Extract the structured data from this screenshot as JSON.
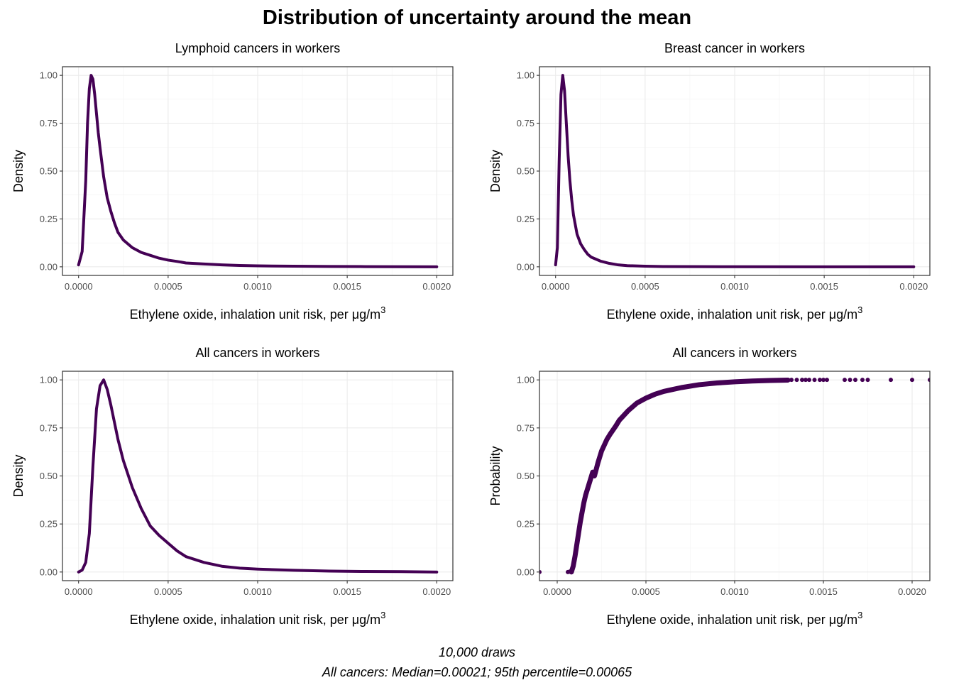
{
  "title": "Distribution of uncertainty around the mean",
  "caption": {
    "line1": "10,000 draws",
    "line2": "All cancers: Median=0.00021; 95th percentile=0.00065"
  },
  "colors": {
    "series": "#440154",
    "border": "#333333",
    "grid": "#ebebeb"
  },
  "chart_data": [
    {
      "type": "line",
      "title": "Lymphoid cancers in workers",
      "xlabel": "Ethylene oxide, inhalation unit risk, per ",
      "xlabel_unit": "μg/m",
      "xlabel_sup": "3",
      "ylabel": "Density",
      "xlim": [
        -9e-05,
        0.00209
      ],
      "ylim": [
        -0.045,
        1.045
      ],
      "x_ticks": [
        0,
        0.0005,
        0.001,
        0.0015,
        0.002
      ],
      "x_tick_labels": [
        "0.0000",
        "0.0005",
        "0.0010",
        "0.0015",
        "0.0020"
      ],
      "y_ticks": [
        0,
        0.25,
        0.5,
        0.75,
        1
      ],
      "y_tick_labels": [
        "0.00",
        "0.25",
        "0.50",
        "0.75",
        "1.00"
      ],
      "grid": true,
      "series": [
        {
          "x": [
            0,
            2e-05,
            4e-05,
            5e-05,
            6e-05,
            7e-05,
            8e-05,
            9e-05,
            0.0001,
            0.00011,
            0.00012,
            0.00014,
            0.00016,
            0.00018,
            0.0002,
            0.00022,
            0.00025,
            0.0003,
            0.00035,
            0.0004,
            0.00045,
            0.0005,
            0.00055,
            0.0006,
            0.0007,
            0.0008,
            0.0009,
            0.001,
            0.0012,
            0.0014,
            0.0016,
            0.0018,
            0.002
          ],
          "y": [
            0.01,
            0.08,
            0.45,
            0.75,
            0.93,
            1.0,
            0.98,
            0.9,
            0.8,
            0.7,
            0.62,
            0.47,
            0.36,
            0.29,
            0.23,
            0.18,
            0.14,
            0.1,
            0.075,
            0.06,
            0.045,
            0.035,
            0.028,
            0.02,
            0.015,
            0.01,
            0.007,
            0.005,
            0.003,
            0.002,
            0.001,
            0.0005,
            0.0
          ]
        }
      ]
    },
    {
      "type": "line",
      "title": "Breast cancer in workers",
      "xlabel": "Ethylene oxide, inhalation unit risk, per ",
      "xlabel_unit": "μg/m",
      "xlabel_sup": "3",
      "ylabel": "Density",
      "xlim": [
        -9e-05,
        0.00209
      ],
      "ylim": [
        -0.045,
        1.045
      ],
      "x_ticks": [
        0,
        0.0005,
        0.001,
        0.0015,
        0.002
      ],
      "x_tick_labels": [
        "0.0000",
        "0.0005",
        "0.0010",
        "0.0015",
        "0.0020"
      ],
      "y_ticks": [
        0,
        0.25,
        0.5,
        0.75,
        1
      ],
      "y_tick_labels": [
        "0.00",
        "0.25",
        "0.50",
        "0.75",
        "1.00"
      ],
      "grid": true,
      "series": [
        {
          "x": [
            0,
            1e-05,
            2e-05,
            3e-05,
            4e-05,
            5e-05,
            6e-05,
            7e-05,
            8e-05,
            9e-05,
            0.0001,
            0.00012,
            0.00014,
            0.00016,
            0.00018,
            0.0002,
            0.00025,
            0.0003,
            0.00035,
            0.0004,
            0.0005,
            0.0006,
            0.0008,
            0.001,
            0.0015,
            0.002
          ],
          "y": [
            0.01,
            0.1,
            0.55,
            0.9,
            1.0,
            0.92,
            0.75,
            0.58,
            0.45,
            0.35,
            0.27,
            0.17,
            0.12,
            0.09,
            0.065,
            0.05,
            0.03,
            0.018,
            0.01,
            0.006,
            0.003,
            0.0015,
            0.0008,
            0.0004,
            0.0001,
            0.0
          ]
        }
      ]
    },
    {
      "type": "line",
      "title": "All cancers in workers",
      "xlabel": "Ethylene oxide, inhalation unit risk, per ",
      "xlabel_unit": "μg/m",
      "xlabel_sup": "3",
      "ylabel": "Density",
      "xlim": [
        -9e-05,
        0.00209
      ],
      "ylim": [
        -0.045,
        1.045
      ],
      "x_ticks": [
        0,
        0.0005,
        0.001,
        0.0015,
        0.002
      ],
      "x_tick_labels": [
        "0.0000",
        "0.0005",
        "0.0010",
        "0.0015",
        "0.0020"
      ],
      "y_ticks": [
        0,
        0.25,
        0.5,
        0.75,
        1
      ],
      "y_tick_labels": [
        "0.00",
        "0.25",
        "0.50",
        "0.75",
        "1.00"
      ],
      "grid": true,
      "series": [
        {
          "x": [
            0,
            2e-05,
            4e-05,
            6e-05,
            8e-05,
            0.0001,
            0.00012,
            0.00014,
            0.00016,
            0.00018,
            0.0002,
            0.00022,
            0.00025,
            0.0003,
            0.00035,
            0.0004,
            0.00045,
            0.0005,
            0.00055,
            0.0006,
            0.0007,
            0.0008,
            0.0009,
            0.001,
            0.0012,
            0.0014,
            0.0016,
            0.0018,
            0.002
          ],
          "y": [
            0.0,
            0.01,
            0.05,
            0.2,
            0.55,
            0.85,
            0.97,
            1.0,
            0.95,
            0.87,
            0.78,
            0.69,
            0.58,
            0.44,
            0.33,
            0.24,
            0.19,
            0.15,
            0.11,
            0.08,
            0.05,
            0.03,
            0.02,
            0.015,
            0.009,
            0.005,
            0.003,
            0.002,
            0.0
          ]
        }
      ]
    },
    {
      "type": "scatter",
      "title": "All cancers in workers",
      "xlabel": "Ethylene oxide, inhalation unit risk, per ",
      "xlabel_unit": "μg/m",
      "xlabel_sup": "3",
      "ylabel": "Probability",
      "xlim": [
        -0.0001,
        0.0021
      ],
      "ylim": [
        -0.045,
        1.045
      ],
      "x_ticks": [
        0,
        0.0005,
        0.001,
        0.0015,
        0.002
      ],
      "x_tick_labels": [
        "0.0000",
        "0.0005",
        "0.0010",
        "0.0015",
        "0.0020"
      ],
      "y_ticks": [
        0,
        0.25,
        0.5,
        0.75,
        1
      ],
      "y_tick_labels": [
        "0.00",
        "0.25",
        "0.50",
        "0.75",
        "1.00"
      ],
      "grid": true,
      "ecdf_curve": {
        "x": [
          8e-05,
          9e-05,
          0.0001,
          0.00011,
          0.00012,
          0.00013,
          0.00014,
          0.00015,
          0.00016,
          0.00018,
          0.0002,
          0.00021,
          0.00023,
          0.00025,
          0.00028,
          0.0003,
          0.00033,
          0.00035,
          0.0004,
          0.00045,
          0.0005,
          0.00055,
          0.0006,
          0.00065,
          0.0007,
          0.0008,
          0.0009,
          0.001,
          0.0011,
          0.0012,
          0.0013
        ],
        "y": [
          0.0,
          0.03,
          0.08,
          0.14,
          0.2,
          0.26,
          0.31,
          0.36,
          0.4,
          0.46,
          0.52,
          0.5,
          0.57,
          0.63,
          0.69,
          0.72,
          0.76,
          0.79,
          0.84,
          0.88,
          0.905,
          0.925,
          0.94,
          0.95,
          0.96,
          0.975,
          0.984,
          0.99,
          0.994,
          0.997,
          0.999
        ]
      },
      "points": {
        "x": [
          -0.0001,
          6e-05,
          7e-05,
          0.0013,
          0.00132,
          0.00135,
          0.00138,
          0.0014,
          0.00142,
          0.00145,
          0.00148,
          0.0015,
          0.00152,
          0.00162,
          0.00165,
          0.00168,
          0.00172,
          0.00175,
          0.00188,
          0.002,
          0.0021
        ],
        "y": [
          0.0,
          0.0,
          0.002,
          1.0,
          1.0,
          1.0,
          1.0,
          1.0,
          1.0,
          1.0,
          1.0,
          1.0,
          1.0,
          1.0,
          1.0,
          1.0,
          1.0,
          1.0,
          1.0,
          1.0,
          1.0
        ]
      }
    }
  ]
}
